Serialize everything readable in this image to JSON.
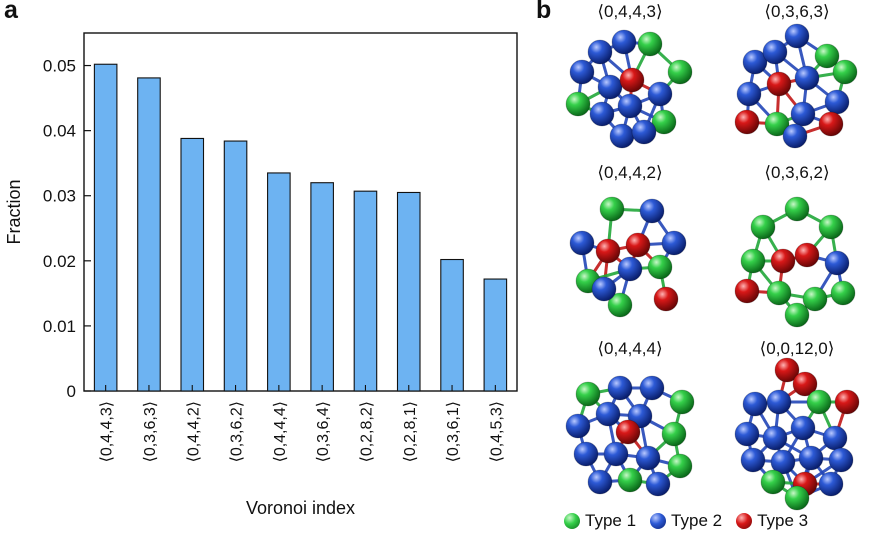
{
  "panels": {
    "a": "a",
    "b": "b"
  },
  "chart_data": {
    "type": "bar",
    "categories": [
      "⟨0,4,4,3⟩",
      "⟨0,3,6,3⟩",
      "⟨0,4,4,2⟩",
      "⟨0,3,6,2⟩",
      "⟨0,4,4,4⟩",
      "⟨0,3,6,4⟩",
      "⟨0,2,8,2⟩",
      "⟨0,2,8,1⟩",
      "⟨0,3,6,1⟩",
      "⟨0,4,5,3⟩"
    ],
    "values": [
      0.0502,
      0.0481,
      0.0388,
      0.0384,
      0.0335,
      0.032,
      0.0307,
      0.0305,
      0.0202,
      0.0172
    ],
    "xlabel": "Voronoi index",
    "ylabel": "Fraction",
    "ylim": [
      0,
      0.055
    ],
    "yticks": [
      0,
      0.01,
      0.02,
      0.03,
      0.04,
      0.05
    ],
    "ytick_labels": [
      "0",
      "0.01",
      "0.02",
      "0.03",
      "0.04",
      "0.05"
    ],
    "bar_color": "#6db3f2",
    "grid": false
  },
  "clusters": [
    {
      "label": "⟨0,4,4,3⟩"
    },
    {
      "label": "⟨0,3,6,3⟩"
    },
    {
      "label": "⟨0,4,4,2⟩"
    },
    {
      "label": "⟨0,3,6,2⟩"
    },
    {
      "label": "⟨0,4,4,4⟩"
    },
    {
      "label": "⟨0,0,12,0⟩"
    }
  ],
  "legend": [
    {
      "label": "Type 1",
      "color": "#1fb83a"
    },
    {
      "label": "Type 2",
      "color": "#1f4fc4"
    },
    {
      "label": "Type 3",
      "color": "#d01414"
    }
  ]
}
